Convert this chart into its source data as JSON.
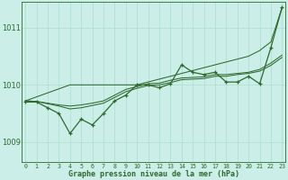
{
  "title": "Graphe pression niveau de la mer (hPa)",
  "bg_color": "#cceee8",
  "grid_color": "#aaddcc",
  "line_color": "#2d6a2d",
  "x_ticks": [
    0,
    1,
    2,
    3,
    4,
    5,
    6,
    7,
    8,
    9,
    10,
    11,
    12,
    13,
    14,
    15,
    16,
    17,
    18,
    19,
    20,
    21,
    22,
    23
  ],
  "y_ticks": [
    1009,
    1010,
    1011
  ],
  "ylim": [
    1008.65,
    1011.45
  ],
  "xlim": [
    -0.3,
    23.3
  ],
  "series": {
    "main": [
      1009.7,
      1009.7,
      1009.6,
      1009.5,
      1009.15,
      1009.4,
      1009.3,
      1009.5,
      1009.72,
      1009.82,
      1010.0,
      1010.0,
      1009.95,
      1010.02,
      1010.35,
      1010.22,
      1010.18,
      1010.22,
      1010.05,
      1010.05,
      1010.15,
      1010.02,
      1010.65,
      1011.35
    ],
    "smooth1": [
      1009.72,
      1009.71,
      1009.68,
      1009.65,
      1009.63,
      1009.65,
      1009.68,
      1009.72,
      1009.82,
      1009.92,
      1009.97,
      1010.02,
      1010.03,
      1010.08,
      1010.12,
      1010.13,
      1010.14,
      1010.18,
      1010.18,
      1010.2,
      1010.22,
      1010.27,
      1010.38,
      1010.52
    ],
    "smooth2": [
      1009.72,
      1009.71,
      1009.67,
      1009.63,
      1009.58,
      1009.6,
      1009.64,
      1009.68,
      1009.78,
      1009.88,
      1009.94,
      1009.99,
      1010.0,
      1010.04,
      1010.09,
      1010.1,
      1010.11,
      1010.15,
      1010.15,
      1010.18,
      1010.2,
      1010.24,
      1010.34,
      1010.48
    ],
    "linear": [
      1009.72,
      1009.79,
      1009.86,
      1009.93,
      1010.0,
      1010.0,
      1010.0,
      1010.0,
      1010.0,
      1010.0,
      1010.0,
      1010.05,
      1010.1,
      1010.15,
      1010.2,
      1010.25,
      1010.3,
      1010.35,
      1010.4,
      1010.45,
      1010.5,
      1010.6,
      1010.75,
      1011.35
    ]
  }
}
